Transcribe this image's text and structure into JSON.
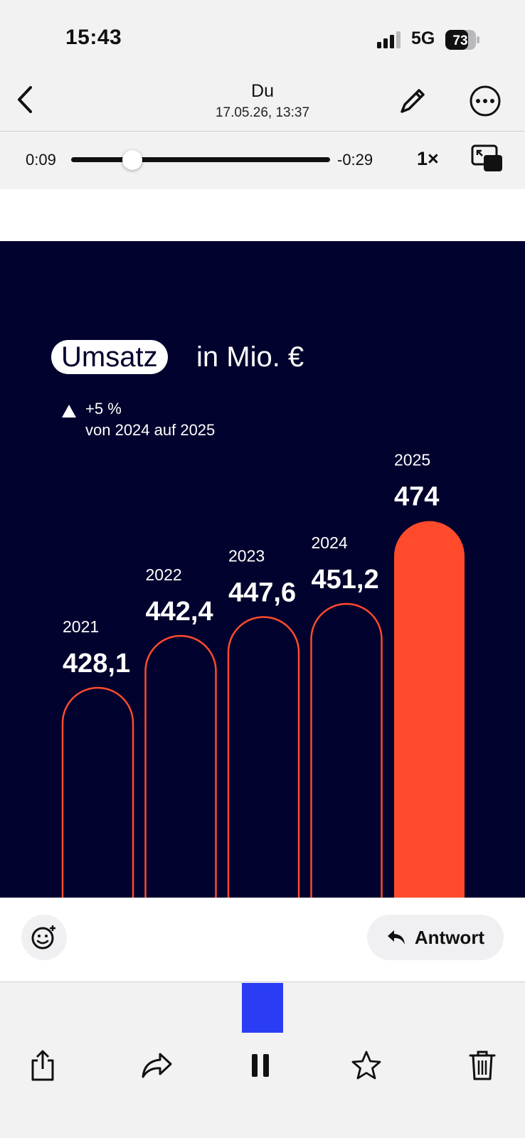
{
  "status": {
    "time": "15:43",
    "network": "5G",
    "battery": "73"
  },
  "header": {
    "title": "Du",
    "subtitle": "17.05.26, 13:37"
  },
  "player": {
    "elapsed": "0:09",
    "remaining": "-0:29",
    "progress": 0.235,
    "speed": "1×"
  },
  "media": {
    "pill_text": "Umsatz",
    "pill_suffix": "in Mio. €",
    "change_text": "+5 %",
    "change_subtext": "von 2024 auf 2025"
  },
  "chart_data": {
    "type": "bar",
    "categories": [
      "2021",
      "2022",
      "2023",
      "2024",
      "2025"
    ],
    "values": [
      428.1,
      442.4,
      447.6,
      451.2,
      474
    ],
    "value_labels": [
      "428,1",
      "442,4",
      "447,6",
      "451,2",
      "474"
    ],
    "highlight_index": 4,
    "colors": {
      "background": "#02022e",
      "outline": "#ff4b2b",
      "highlight": "#ff4b2b",
      "text": "#ffffff"
    }
  },
  "actions": {
    "reply_label": "Antwort"
  },
  "icons": {
    "back": "chevron-left-icon",
    "edit": "pencil-icon",
    "more": "ellipsis-circle-icon",
    "pip": "picture-in-picture-icon",
    "emoji": "add-reaction-icon",
    "reply": "reply-arrow-icon",
    "share": "share-icon",
    "forward": "forward-icon",
    "pause": "pause-icon",
    "star": "star-icon",
    "trash": "trash-icon"
  },
  "colors": {
    "accent_blue": "#2a3df5",
    "chart_orange": "#ff4b2b",
    "chart_bg": "#02022e"
  }
}
